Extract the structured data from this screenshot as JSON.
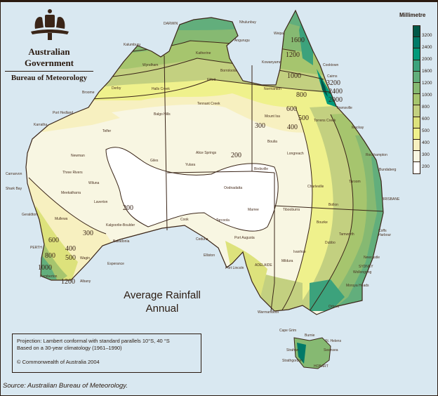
{
  "header": {
    "government": "Australian Government",
    "bureau": "Bureau of Meteorology",
    "logo": "coat-of-arms"
  },
  "title": {
    "line1": "Average Rainfall",
    "line2": "Annual"
  },
  "legend": {
    "title": "Millimetre",
    "labels": [
      "3200",
      "2400",
      "2000",
      "1600",
      "1200",
      "1000",
      "800",
      "600",
      "500",
      "400",
      "300",
      "200"
    ],
    "colors": [
      "#005848",
      "#007a68",
      "#00997a",
      "#3ca27c",
      "#62ae7c",
      "#86b972",
      "#a6c56e",
      "#c3d080",
      "#dde27c",
      "#eff18c",
      "#f7f0c0",
      "#f8f6e2",
      "#ffffff"
    ]
  },
  "info": {
    "projection": "Projection: Lambert conformal with standard parallels 10°S, 40 °S",
    "climatology": "Based on a 30-year climatology (1961–1990)",
    "copyright": "© Commonwealth of  Australia 2004"
  },
  "source": "Source: Australian Bureau of Meteorology.",
  "cities": [
    "DARWIN",
    "Nhulunbuy",
    "Angurugu",
    "Kalumburu",
    "Wyndham",
    "Katherine",
    "Borroloola",
    "Kowanyama",
    "Weipa",
    "Cooktown",
    "Cairns",
    "Townsville",
    "Derby",
    "Broome",
    "Halls Creek",
    "Elliott",
    "Normanton",
    "Tennant Creek",
    "Mount Isa",
    "Port Hedland",
    "Karratha",
    "Balgo Hills",
    "Telfer",
    "Boulia",
    "Longreach",
    "Rockhampton",
    "Mackay",
    "Torrens Creek",
    "Newman",
    "Giles",
    "Alice Springs",
    "Yulara",
    "Birdsville",
    "Bundaberg",
    "Taroom",
    "BRISBANE",
    "Charleville",
    "Bollon",
    "Carnarvon",
    "Shark Bay",
    "Three Rivers",
    "Wiluna",
    "Meekatharra",
    "Oodnadatta",
    "Marree",
    "Tibooburra",
    "Laverton",
    "Cook",
    "Tarcoola",
    "Bourke",
    "Tamworth",
    "Coffs Harbour",
    "Geraldton",
    "Mullewa",
    "Kalgoorlie-Boulder",
    "Port Augusta",
    "Ceduna",
    "Dubbo",
    "Balladonia",
    "Newcastle",
    "PERTH",
    "Wagin",
    "Esperance",
    "Elliston",
    "Port Lincoln",
    "ADELAIDE",
    "Mildura",
    "Ivanhoe",
    "SYDNEY",
    "Wollongong",
    "Pemberton",
    "Albany",
    "Moruya Heads",
    "Warrnambool",
    "Orbost",
    "Cape Grim",
    "Burnie",
    "St. Helens",
    "Strahan",
    "Swansea",
    "Strathgordon",
    "HOBART"
  ],
  "contour_labels": [
    "1600",
    "1200",
    "1000",
    "800",
    "600",
    "500",
    "400",
    "300",
    "3200",
    "2400",
    "2000",
    "200",
    "200",
    "300",
    "400",
    "600",
    "800",
    "500",
    "1000",
    "1200"
  ]
}
